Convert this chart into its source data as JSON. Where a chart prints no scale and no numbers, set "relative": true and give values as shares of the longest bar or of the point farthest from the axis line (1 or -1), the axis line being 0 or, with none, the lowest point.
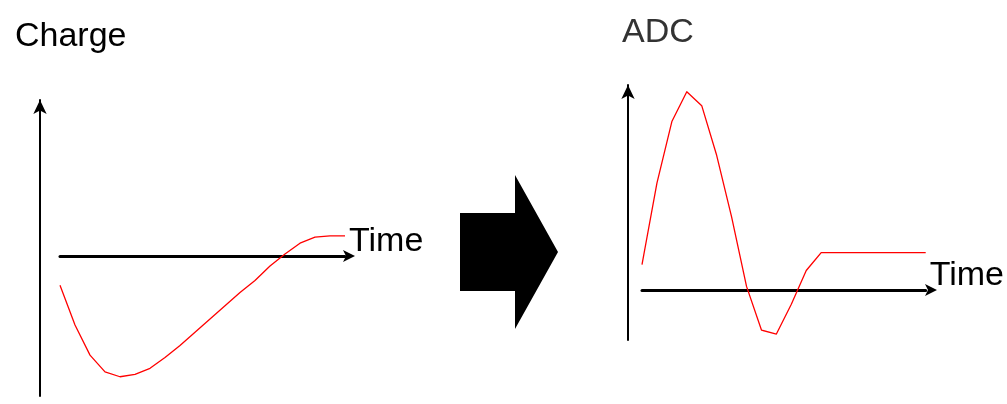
{
  "chart_data": [
    {
      "type": "line",
      "title": "Charge",
      "xlabel": "Time",
      "relative": true,
      "categories": [
        null,
        null,
        null,
        null,
        null,
        null,
        null,
        null,
        null,
        null,
        null,
        null,
        null,
        null,
        null,
        null,
        null,
        null,
        null,
        null
      ],
      "series": [
        {
          "color": "#ff0000",
          "values": [
            -0.24,
            -0.57,
            -0.82,
            -0.96,
            -1,
            -0.98,
            -0.93,
            -0.84,
            -0.74,
            -0.63,
            -0.52,
            -0.41,
            -0.3,
            -0.2,
            -0.08,
            0.02,
            0.11,
            0.16,
            0.17,
            0.17
          ]
        }
      ],
      "marker": "none",
      "grid": false
    },
    {
      "type": "line",
      "title": "ADC",
      "xlabel": "Time",
      "relative": true,
      "categories": [
        null,
        null,
        null,
        null,
        null,
        null,
        null,
        null,
        null,
        null,
        null,
        null,
        null,
        null,
        null,
        null,
        null,
        null,
        null,
        null
      ],
      "series": [
        {
          "color": "#ff0000",
          "values": [
            0.13,
            0.54,
            0.85,
            1,
            0.93,
            0.68,
            0.37,
            0.02,
            -0.2,
            -0.22,
            -0.07,
            0.1,
            0.19,
            0.19,
            0.19,
            0.19,
            0.19,
            0.19,
            0.19,
            0.19
          ]
        }
      ],
      "marker": "none",
      "grid": false
    }
  ]
}
